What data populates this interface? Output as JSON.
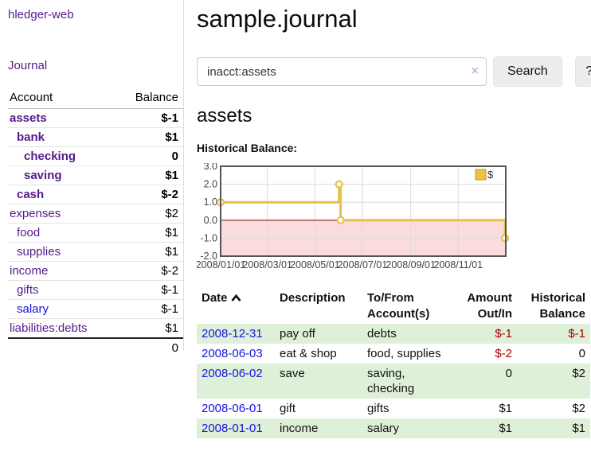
{
  "app": {
    "brand": "hledger-web",
    "nav_journal": "Journal"
  },
  "sidebar": {
    "accounts_header": {
      "account": "Account",
      "balance": "Balance"
    },
    "accounts": [
      {
        "name": "assets",
        "indent": 0,
        "bold": true,
        "name_class": "link-purple",
        "balance": "$-1",
        "bal_class": "neg-strong"
      },
      {
        "name": "bank",
        "indent": 1,
        "bold": true,
        "name_class": "link-purple",
        "balance": "$1",
        "bal_class": ""
      },
      {
        "name": "checking",
        "indent": 2,
        "bold": true,
        "name_class": "link-purple",
        "balance": "0",
        "bal_class": ""
      },
      {
        "name": "saving",
        "indent": 2,
        "bold": true,
        "name_class": "link-purple",
        "balance": "$1",
        "bal_class": ""
      },
      {
        "name": "cash",
        "indent": 1,
        "bold": true,
        "name_class": "link-purple",
        "balance": "$-2",
        "bal_class": "neg-strong"
      },
      {
        "name": "expenses",
        "indent": 0,
        "bold": false,
        "name_class": "link-purple",
        "balance": "$2",
        "bal_class": ""
      },
      {
        "name": "food",
        "indent": 1,
        "bold": false,
        "name_class": "link-purple",
        "balance": "$1",
        "bal_class": ""
      },
      {
        "name": "supplies",
        "indent": 1,
        "bold": false,
        "name_class": "link-purple",
        "balance": "$1",
        "bal_class": ""
      },
      {
        "name": "income",
        "indent": 0,
        "bold": false,
        "name_class": "link-purple",
        "balance": "$-2",
        "bal_class": "neg-soft"
      },
      {
        "name": "gifts",
        "indent": 1,
        "bold": false,
        "name_class": "link-purple",
        "balance": "$-1",
        "bal_class": "neg-soft"
      },
      {
        "name": "salary",
        "indent": 1,
        "bold": false,
        "name_class": "link-blue",
        "balance": "$-1",
        "bal_class": "neg-soft"
      },
      {
        "name": "liabilities:debts",
        "indent": 0,
        "bold": false,
        "name_class": "link-purple",
        "balance": "$1",
        "bal_class": ""
      }
    ],
    "total": "0"
  },
  "header": {
    "title": "sample.journal"
  },
  "search": {
    "value": "inacct:assets",
    "clear_icon": "×",
    "button_label": "Search",
    "help_label": "?"
  },
  "account_page": {
    "heading": "assets",
    "chart_label": "Historical Balance:"
  },
  "chart_data": {
    "type": "line",
    "title": "Historical Balance:",
    "legend": [
      {
        "label": "$",
        "color": "#edc240"
      }
    ],
    "legend_position": "top-right",
    "x_start": "2008-01-01",
    "x_end": "2009-01-01",
    "x_ticks": [
      "2008/01/01",
      "2008/03/01",
      "2008/05/01",
      "2008/07/01",
      "2008/09/01",
      "2008/11/01"
    ],
    "y_ticks": [
      "3.0",
      "2.0",
      "1.0",
      "0.0",
      "-1.0",
      "-2.0"
    ],
    "ylim": [
      -2,
      3
    ],
    "balances": [
      [
        "2008-01-01",
        1
      ],
      [
        "2008-06-01",
        2
      ],
      [
        "2008-06-02",
        2
      ],
      [
        "2008-06-03",
        0
      ],
      [
        "2008-12-31",
        -1
      ]
    ],
    "step_points": [
      [
        "2008-01-01",
        1
      ],
      [
        "2008-06-01",
        1
      ],
      [
        "2008-06-01",
        2
      ],
      [
        "2008-06-03",
        2
      ],
      [
        "2008-06-03",
        0
      ],
      [
        "2008-12-31",
        0
      ],
      [
        "2008-12-31",
        -1
      ]
    ],
    "markers": [
      [
        "2008-01-01",
        1
      ],
      [
        "2008-06-01",
        2
      ],
      [
        "2008-06-03",
        0
      ],
      [
        "2008-12-31",
        -1
      ]
    ],
    "line_color": "#e8c14a",
    "marker_fill": "#ffffff",
    "zero_line_color": "#8b1a1a",
    "negative_fill": "#fadcdc",
    "grid_color": "#dcdcdc",
    "border_color": "#545454",
    "tick_color": "#444444",
    "grid": true
  },
  "table": {
    "columns": {
      "date": "Date",
      "description": "Description",
      "accounts": "To/From Account(s)",
      "amount": "Amount Out/In",
      "balance": "Historical Balance"
    },
    "sort_icon": "chevron-up",
    "rows": [
      {
        "date": "2008-12-31",
        "description": "pay off",
        "accounts": "debts",
        "amount": "$-1",
        "amount_neg": true,
        "balance": "$-1",
        "balance_neg": true
      },
      {
        "date": "2008-06-03",
        "description": "eat & shop",
        "accounts": "food, supplies",
        "amount": "$-2",
        "amount_neg": true,
        "balance": "0",
        "balance_neg": false
      },
      {
        "date": "2008-06-02",
        "description": "save",
        "accounts": "saving, checking",
        "amount": "0",
        "amount_neg": false,
        "balance": "$2",
        "balance_neg": false
      },
      {
        "date": "2008-06-01",
        "description": "gift",
        "accounts": "gifts",
        "amount": "$1",
        "amount_neg": false,
        "balance": "$2",
        "balance_neg": false
      },
      {
        "date": "2008-01-01",
        "description": "income",
        "accounts": "salary",
        "amount": "$1",
        "amount_neg": false,
        "balance": "$1",
        "balance_neg": false
      }
    ]
  }
}
